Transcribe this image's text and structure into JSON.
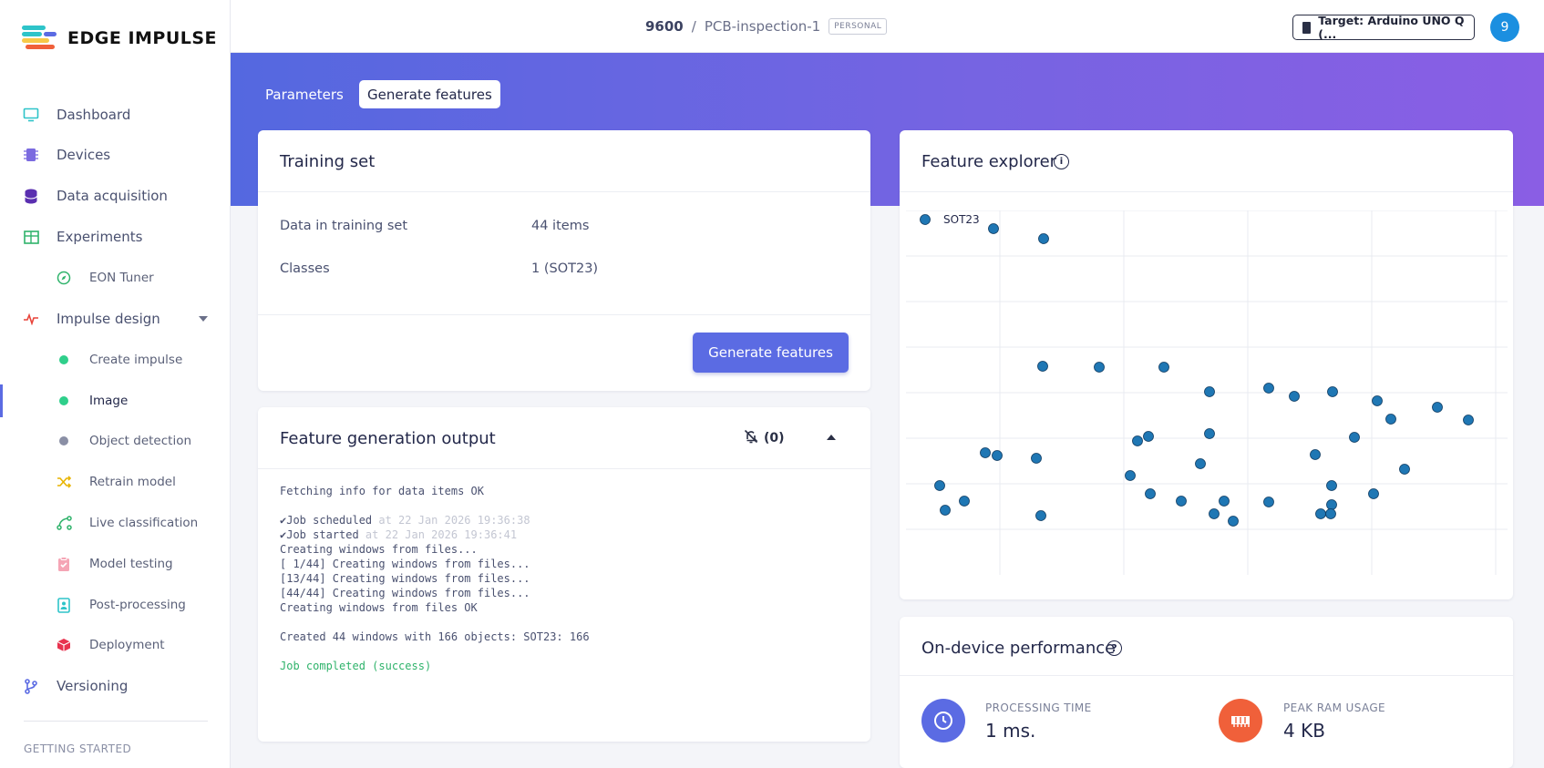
{
  "brand": {
    "name": "EDGE IMPULSE"
  },
  "sidebar": {
    "items": [
      {
        "label": "Dashboard",
        "icon": "monitor-icon"
      },
      {
        "label": "Devices",
        "icon": "chip-icon"
      },
      {
        "label": "Data acquisition",
        "icon": "database-icon"
      },
      {
        "label": "Experiments",
        "icon": "table-icon"
      },
      {
        "label": "EON Tuner",
        "icon": "compass-icon"
      },
      {
        "label": "Impulse design",
        "icon": "pulse-icon"
      },
      {
        "label": "Create impulse",
        "icon": "dot-icon"
      },
      {
        "label": "Image",
        "icon": "dot-icon"
      },
      {
        "label": "Object detection",
        "icon": "dot-icon"
      },
      {
        "label": "Retrain model",
        "icon": "shuffle-icon"
      },
      {
        "label": "Live classification",
        "icon": "nodes-icon"
      },
      {
        "label": "Model testing",
        "icon": "clipboard-check-icon"
      },
      {
        "label": "Post-processing",
        "icon": "badge-icon"
      },
      {
        "label": "Deployment",
        "icon": "cube-icon"
      },
      {
        "label": "Versioning",
        "icon": "branch-icon"
      }
    ],
    "section_heading": "GETTING STARTED"
  },
  "topbar": {
    "project_id": "9600",
    "separator": "/",
    "project_name": "PCB-inspection-1",
    "badge": "PERSONAL",
    "target": "Target: Arduino UNO Q (...",
    "avatar_initial": "9"
  },
  "tabs": {
    "parameters": "Parameters",
    "generate": "Generate features"
  },
  "training_set": {
    "title": "Training set",
    "rows": [
      {
        "key": "Data in training set",
        "value": "44 items"
      },
      {
        "key": "Classes",
        "value": "1 (SOT23)"
      }
    ],
    "button": "Generate features"
  },
  "output": {
    "title": "Feature generation output",
    "notifications": "(0)",
    "line1": "Fetching info for data items OK",
    "job_scheduled": "✔Job scheduled",
    "job_scheduled_ts": " at 22 Jan 2026 19:36:38",
    "job_started": "✔Job started",
    "job_started_ts": " at 22 Jan 2026 19:36:41",
    "lines": "Creating windows from files...\n[ 1/44] Creating windows from files...\n[13/44] Creating windows from files...\n[44/44] Creating windows from files...\nCreating windows from files OK\n\nCreated 44 windows with 166 objects: SOT23: 166\n\n",
    "completed": "Job completed (success)"
  },
  "feature_explorer": {
    "title": "Feature explorer",
    "info_glyph": "i"
  },
  "chart_data": {
    "type": "scatter",
    "series": [
      {
        "name": "SOT23",
        "color": "#1f77b4",
        "points": [
          [
            96,
            20
          ],
          [
            151,
            31
          ],
          [
            150,
            171
          ],
          [
            212,
            172
          ],
          [
            283,
            172
          ],
          [
            333,
            199
          ],
          [
            398,
            195
          ],
          [
            426,
            204
          ],
          [
            468,
            199
          ],
          [
            517,
            209
          ],
          [
            532,
            229
          ],
          [
            583,
            216
          ],
          [
            617,
            230
          ],
          [
            87,
            266
          ],
          [
            100,
            269
          ],
          [
            143,
            272
          ],
          [
            254,
            253
          ],
          [
            266,
            248
          ],
          [
            333,
            245
          ],
          [
            449,
            268
          ],
          [
            492,
            249
          ],
          [
            323,
            278
          ],
          [
            37,
            302
          ],
          [
            246,
            291
          ],
          [
            268,
            311
          ],
          [
            467,
            302
          ],
          [
            513,
            311
          ],
          [
            547,
            284
          ],
          [
            43,
            329
          ],
          [
            64,
            319
          ],
          [
            148,
            335
          ],
          [
            302,
            319
          ],
          [
            338,
            333
          ],
          [
            349,
            319
          ],
          [
            359,
            341
          ],
          [
            398,
            320
          ],
          [
            455,
            333
          ],
          [
            467,
            323
          ],
          [
            466,
            333
          ]
        ]
      }
    ],
    "grid": true
  },
  "performance": {
    "title": "On-device performance",
    "help_glyph": "?",
    "metrics": [
      {
        "label": "PROCESSING TIME",
        "value": "1 ms.",
        "icon": "clock-icon",
        "color": "#5b6be3"
      },
      {
        "label": "PEAK RAM USAGE",
        "value": "4 KB",
        "icon": "memory-icon",
        "color": "#f0603a"
      }
    ]
  }
}
